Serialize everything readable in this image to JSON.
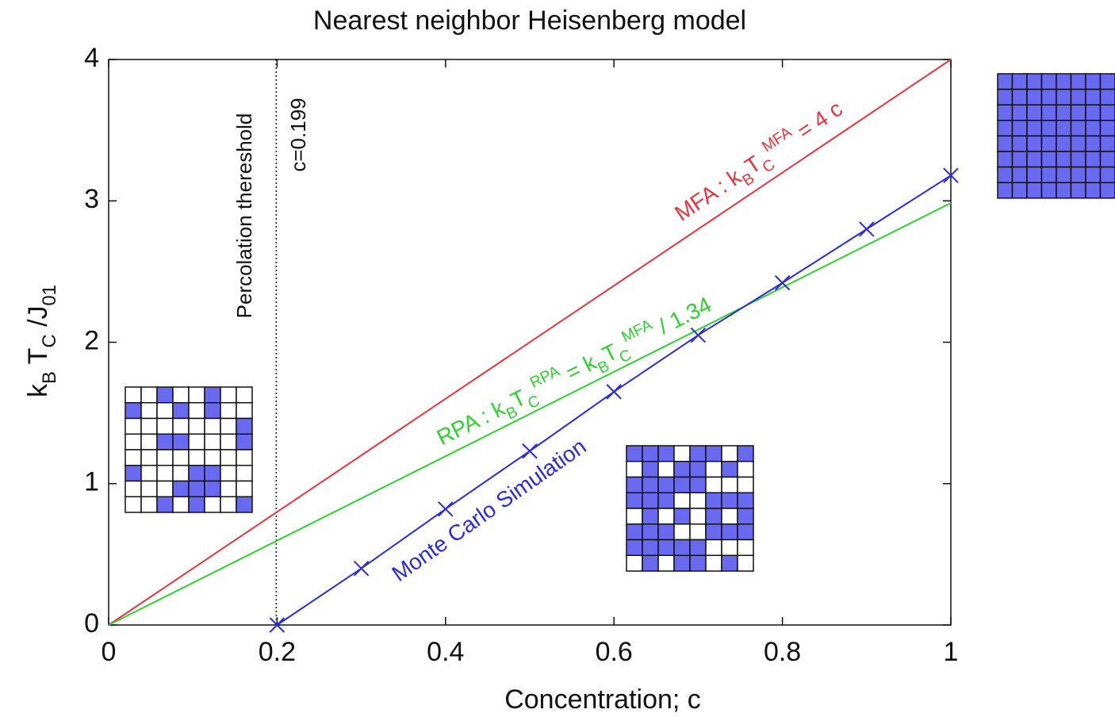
{
  "chart_data": {
    "type": "line",
    "title": "Nearest neighbor Heisenberg model",
    "x_label": "Concentration; c",
    "y_label_parts": [
      {
        "text": "k"
      },
      {
        "text": "B",
        "baseline": "sub"
      },
      {
        "text": " T"
      },
      {
        "text": "C",
        "baseline": "sub"
      },
      {
        "text": " /J"
      },
      {
        "text": "01",
        "baseline": "sub"
      }
    ],
    "xlim": [
      0,
      1
    ],
    "ylim": [
      0,
      4
    ],
    "xticks": [
      0,
      0.2,
      0.4,
      0.6,
      0.8,
      1
    ],
    "yticks": [
      0,
      1,
      2,
      3,
      4
    ],
    "series": [
      {
        "name": "MFA",
        "color": "#e8343c",
        "x": [
          0,
          1
        ],
        "values": [
          0,
          4
        ],
        "markers": false
      },
      {
        "name": "RPA",
        "color": "#2ed12e",
        "x": [
          0,
          1
        ],
        "values": [
          0,
          2.985
        ],
        "markers": false
      },
      {
        "name": "Monte Carlo Simulation",
        "color": "#2a2ae0",
        "x": [
          0.2,
          0.3,
          0.4,
          0.5,
          0.6,
          0.7,
          0.8,
          0.9,
          1
        ],
        "values": [
          0,
          0.4,
          0.82,
          1.23,
          1.65,
          2.05,
          2.42,
          2.8,
          3.18
        ],
        "markers": true
      }
    ],
    "annotations": [
      {
        "color": "#e8343c",
        "parts": [
          {
            "text": "MFA : k"
          },
          {
            "text": "B",
            "baseline": "sub"
          },
          {
            "text": "T"
          },
          {
            "text": "C",
            "baseline": "sub"
          },
          {
            "text": "MFA",
            "baseline": "super"
          },
          {
            "text": " = 4 c"
          }
        ]
      },
      {
        "color": "#2ed12e",
        "parts": [
          {
            "text": "RPA : k"
          },
          {
            "text": "B",
            "baseline": "sub"
          },
          {
            "text": "T"
          },
          {
            "text": "C",
            "baseline": "sub"
          },
          {
            "text": "RPA",
            "baseline": "super"
          },
          {
            "text": " = k"
          },
          {
            "text": "B",
            "baseline": "sub"
          },
          {
            "text": "T"
          },
          {
            "text": "C",
            "baseline": "sub"
          },
          {
            "text": "MFA",
            "baseline": "super"
          },
          {
            "text": " / 1.34"
          }
        ]
      },
      {
        "color": "#2a2ae0",
        "parts": [
          {
            "text": "Monte Carlo Simulation"
          }
        ]
      }
    ],
    "percolation": {
      "x": 0.199,
      "label": "Percolation thereshold",
      "value_label": "c=0.199"
    }
  }
}
